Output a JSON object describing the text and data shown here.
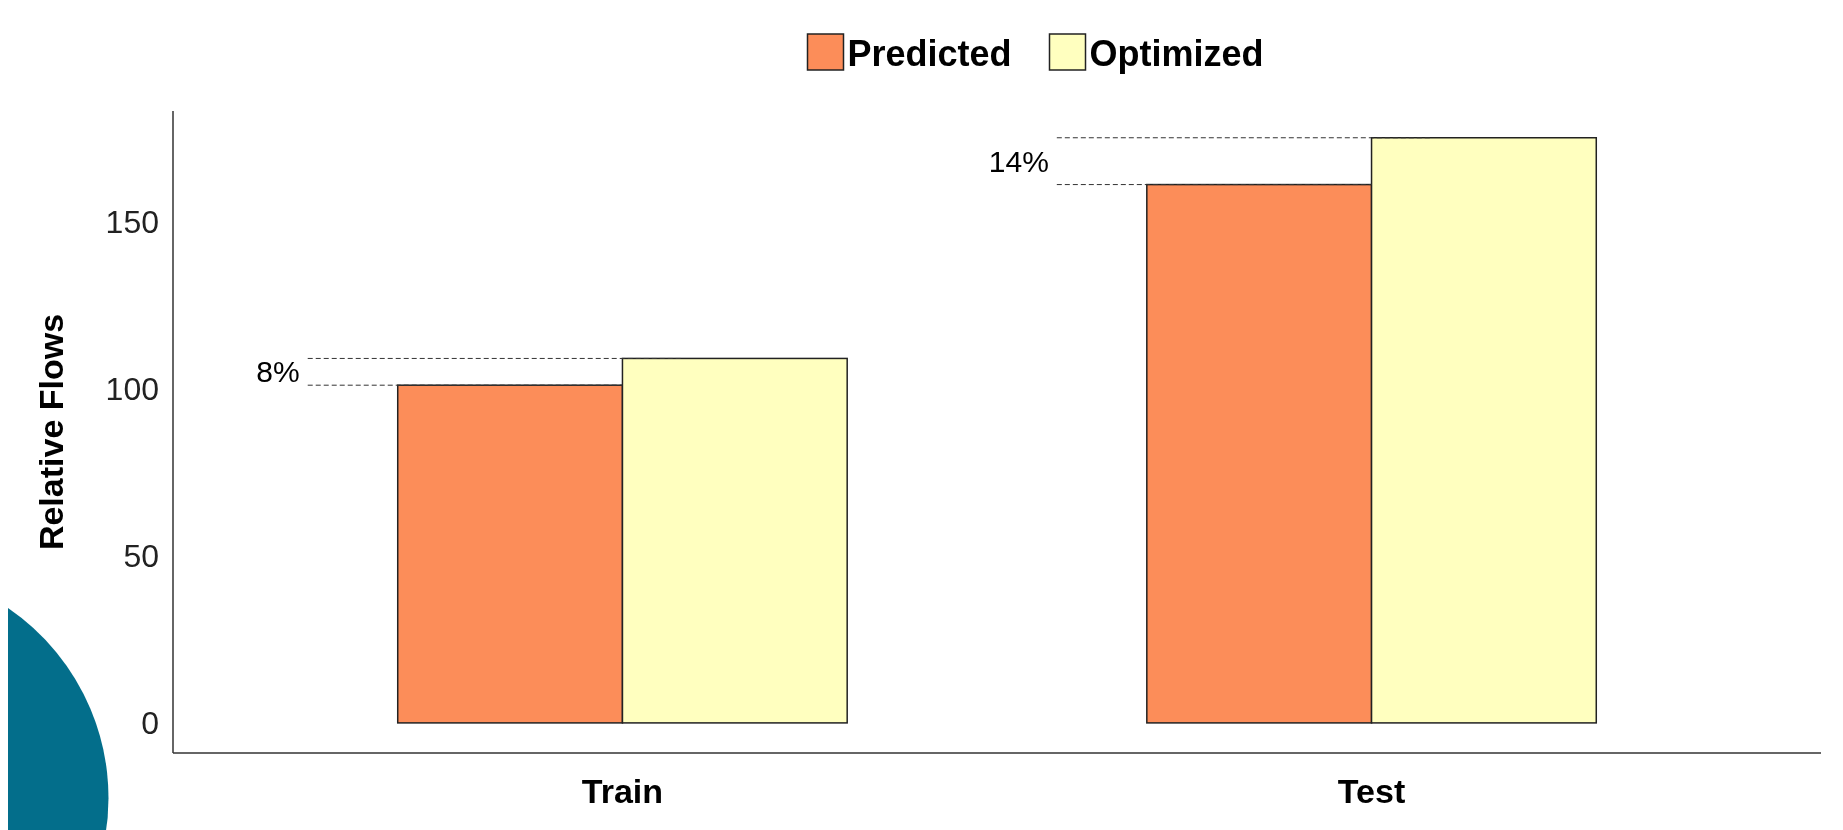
{
  "chart_data": {
    "type": "bar",
    "ylabel": "Relative Flows",
    "categories": [
      "Train",
      "Test"
    ],
    "series": [
      {
        "name": "Predicted",
        "color": "#fc8d59",
        "values": [
          101,
          161
        ]
      },
      {
        "name": "Optimized",
        "color": "#ffffbf",
        "values": [
          109,
          175
        ]
      }
    ],
    "ylim": [
      -9,
      183
    ],
    "yticks": [
      0,
      50,
      100,
      150
    ],
    "legend": "top",
    "annotations": [
      {
        "text": "8%",
        "x": "Train",
        "y": 101
      },
      {
        "text": "14%",
        "x": "Test",
        "y": 161
      }
    ]
  }
}
